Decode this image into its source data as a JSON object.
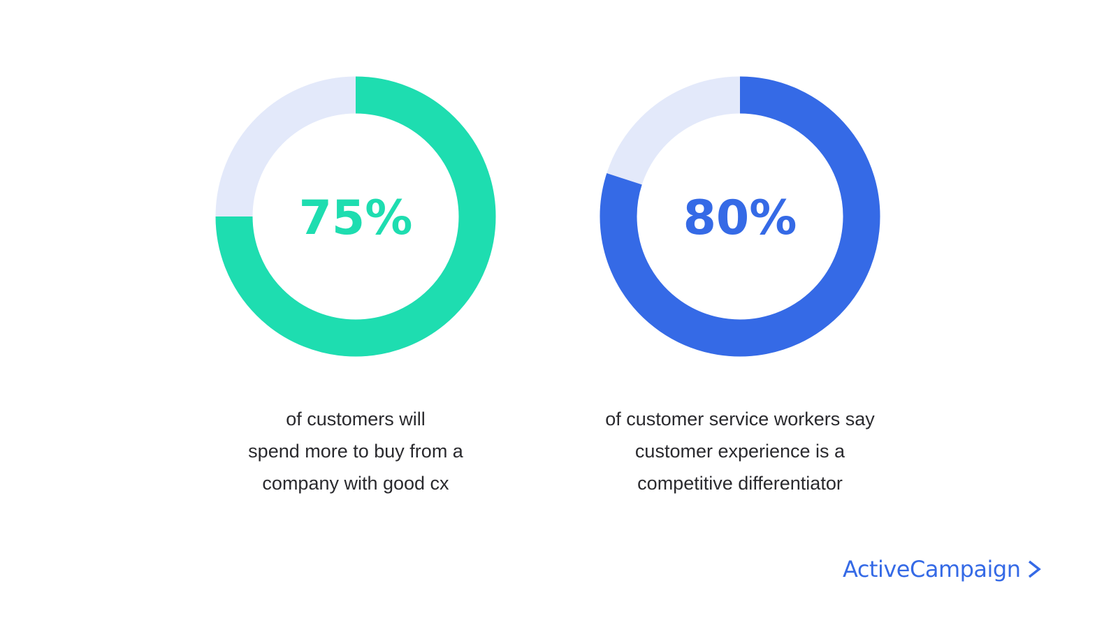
{
  "chart_data": [
    {
      "type": "pie",
      "variant": "donut",
      "value": 75,
      "max": 100,
      "label": "75%",
      "caption": [
        "of customers will",
        "spend more to buy from a",
        "company with good cx"
      ],
      "colors": {
        "filled": "#1EDDB0",
        "remainder": "#E3E9FA"
      }
    },
    {
      "type": "pie",
      "variant": "donut",
      "value": 80,
      "max": 100,
      "label": "80%",
      "caption": [
        "of customer service workers say",
        "customer experience is a",
        "competitive differentiator"
      ],
      "colors": {
        "filled": "#356AE6",
        "remainder": "#E3E9FA"
      }
    }
  ],
  "brand": {
    "name": "ActiveCampaign",
    "icon": "chevron-right-icon",
    "color": "#356AE6"
  }
}
